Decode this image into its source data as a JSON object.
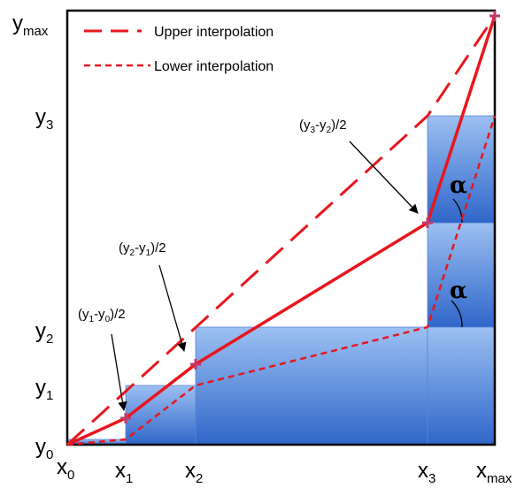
{
  "legend": {
    "upper": "Upper interpolation",
    "lower": "Lower interpolation"
  },
  "axes": {
    "x_ticks": [
      {
        "main": "x",
        "sub": "0"
      },
      {
        "main": "x",
        "sub": "1"
      },
      {
        "main": "x",
        "sub": "2"
      },
      {
        "main": "x",
        "sub": "3"
      },
      {
        "main": "x",
        "sub": "max"
      }
    ],
    "y_ticks": [
      {
        "main": "y",
        "sub": "0"
      },
      {
        "main": "y",
        "sub": "1"
      },
      {
        "main": "y",
        "sub": "2"
      },
      {
        "main": "y",
        "sub": "3"
      },
      {
        "main": "y",
        "sub": "max"
      }
    ]
  },
  "annotations": {
    "a1": {
      "open": "(y",
      "s1": "1",
      "mid": "-y",
      "s2": "0",
      "close": ")/2"
    },
    "a2": {
      "open": "(y",
      "s1": "2",
      "mid": "-y",
      "s2": "1",
      "close": ")/2"
    },
    "a3": {
      "open": "(y",
      "s1": "3",
      "mid": "-y",
      "s2": "2",
      "close": ")/2"
    }
  },
  "angle_symbol": "α",
  "colors": {
    "line": "#e8161e",
    "bar_top": "#8fb7ef",
    "bar_bottom": "#2a63c8",
    "frame": "#000000"
  }
}
